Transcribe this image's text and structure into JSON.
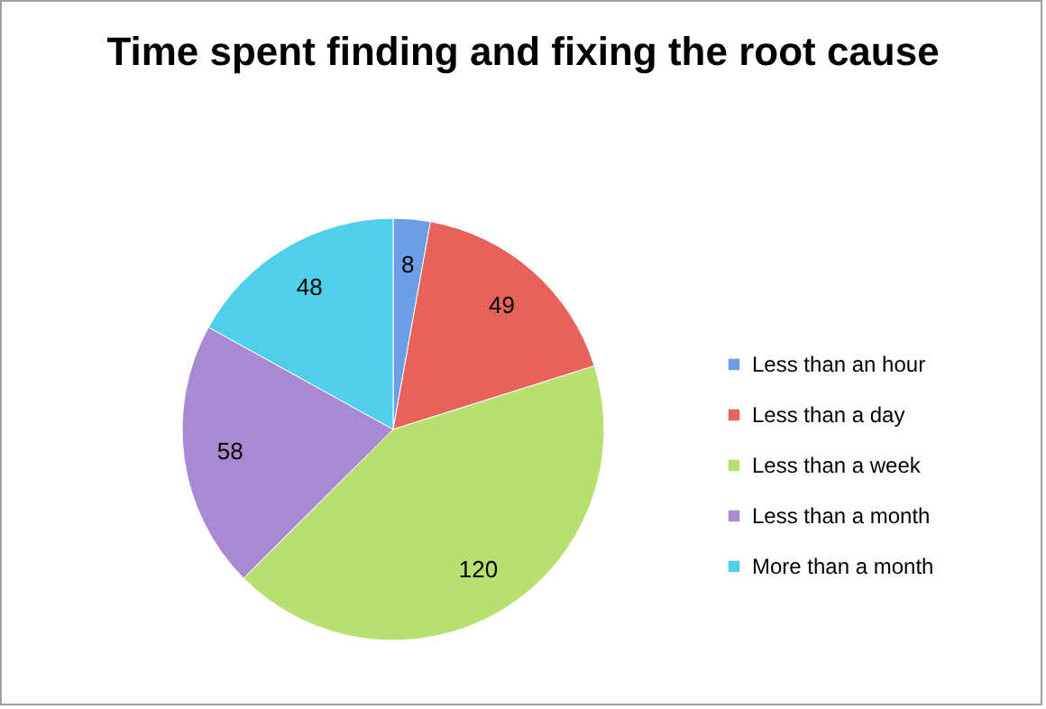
{
  "chart_data": {
    "type": "pie",
    "title": "Time spent finding and fixing the root cause",
    "categories": [
      "Less than an hour",
      "Less than a day",
      "Less than a week",
      "Less than a month",
      "More than a month"
    ],
    "values": [
      8,
      49,
      120,
      58,
      48
    ],
    "colors": [
      "#6a9fe6",
      "#e8625c",
      "#b8e070",
      "#a98ad2",
      "#4fcfea"
    ],
    "data_labels": true,
    "legend": "right"
  }
}
